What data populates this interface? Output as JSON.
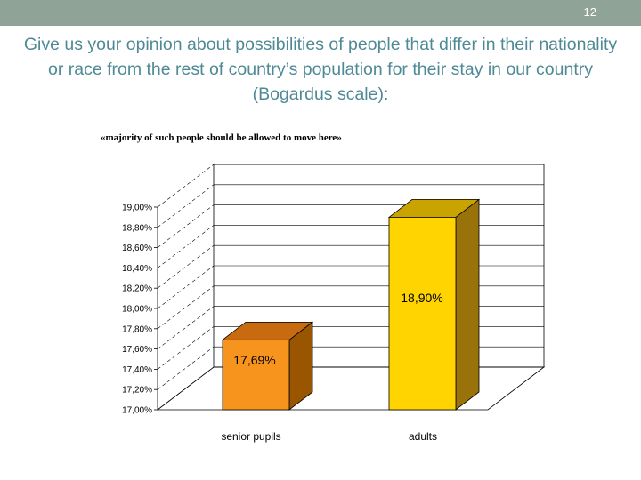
{
  "slide": {
    "number": "12",
    "title": "Give us your opinion about possibilities of people that differ in their nationality or race from the rest of country’s population for their stay in our country (Bogardus scale):"
  },
  "chart_data": {
    "type": "bar",
    "title": "«majority of such people should be allowed to move here»",
    "categories": [
      "senior pupils",
      "adults"
    ],
    "values": [
      17.69,
      18.9
    ],
    "data_labels": [
      "17,69%",
      "18,90%"
    ],
    "colors": [
      "#f7941d",
      "#ffd400"
    ],
    "side_colors": [
      "#995500",
      "#99720a"
    ],
    "top_colors": [
      "#c86a10",
      "#c9a300"
    ],
    "ylim": [
      17.0,
      19.0
    ],
    "yticks": [
      "17,00%",
      "17,20%",
      "17,40%",
      "17,60%",
      "17,80%",
      "18,00%",
      "18,20%",
      "18,40%",
      "18,60%",
      "18,80%",
      "19,00%"
    ],
    "xlabel": "",
    "ylabel": "",
    "grid": true,
    "legend": "none",
    "style": "3d"
  }
}
